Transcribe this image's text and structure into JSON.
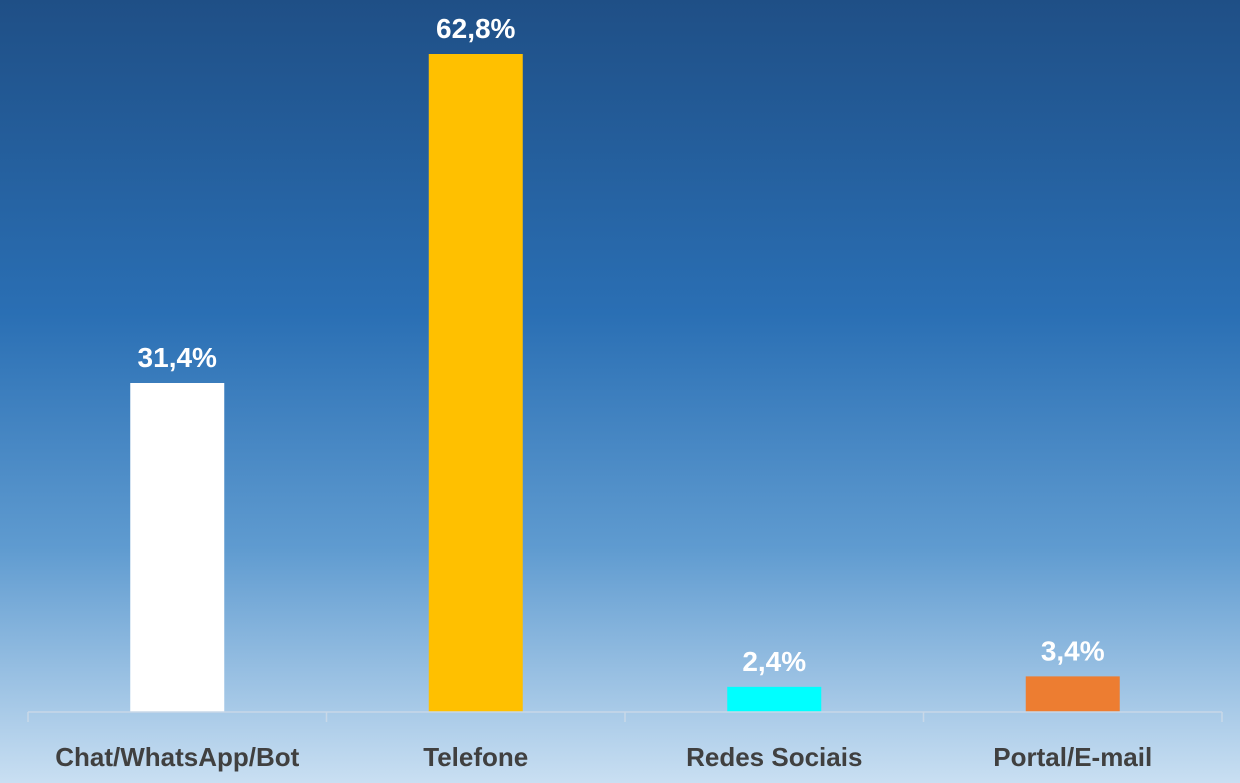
{
  "chart_data": {
    "type": "bar",
    "title": "",
    "xlabel": "",
    "ylabel": "",
    "categories": [
      "Chat/WhatsApp/Bot",
      "Telefone",
      "Redes Sociais",
      "Portal/E-mail"
    ],
    "values": [
      31.4,
      62.8,
      2.4,
      3.4
    ],
    "value_labels": [
      "31,4%",
      "62,8%",
      "2,4%",
      "3,4%"
    ],
    "colors": [
      "#ffffff",
      "#ffc000",
      "#00ffff",
      "#ed7d31"
    ],
    "ylim": [
      0,
      66
    ],
    "grid": false,
    "legend": "none"
  }
}
